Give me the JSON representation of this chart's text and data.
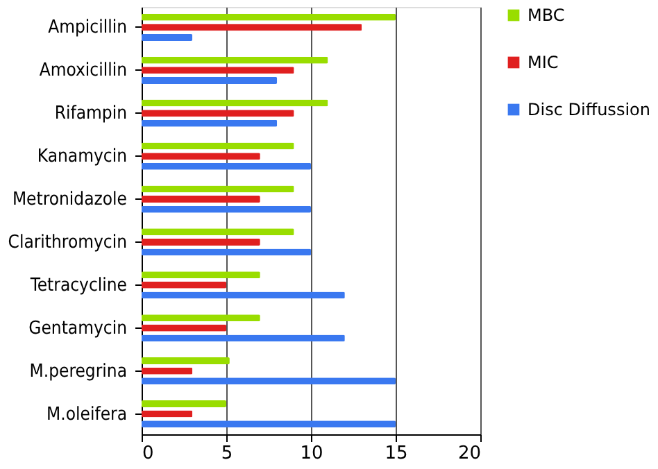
{
  "chart_data": {
    "type": "bar",
    "orientation": "horizontal",
    "categories": [
      "Ampicillin",
      "Amoxicillin",
      "Rifampin",
      "Kanamycin",
      "Metronidazole",
      "Clarithromycin",
      "Tetracycline",
      "Gentamycin",
      "M.peregrina",
      "M.oleifera"
    ],
    "series": [
      {
        "name": "MBC",
        "color": "#99dd00",
        "values": [
          15,
          11,
          11,
          9,
          9,
          9,
          7,
          7,
          5.2,
          5
        ]
      },
      {
        "name": "MIC",
        "color": "#e01f1f",
        "values": [
          13,
          9,
          9,
          7,
          7,
          7,
          5,
          5,
          3,
          3
        ]
      },
      {
        "name": "Disc Diffussion",
        "color": "#3a78f0",
        "values": [
          3,
          8,
          8,
          10,
          10,
          10,
          12,
          12,
          15,
          15
        ]
      }
    ],
    "xlim": [
      0,
      20
    ],
    "xticks": [
      0,
      5,
      10,
      15,
      20
    ],
    "grid": "x",
    "legend": "right"
  }
}
